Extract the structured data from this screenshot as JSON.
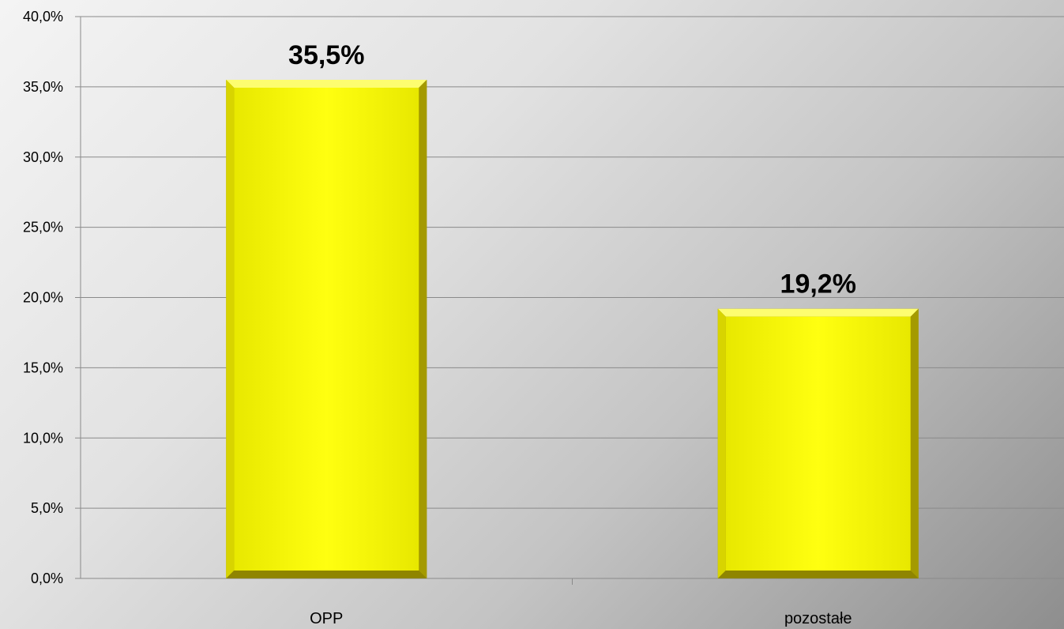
{
  "chart_data": {
    "type": "bar",
    "categories": [
      "OPP",
      "pozostałe"
    ],
    "values": [
      35.5,
      19.2
    ],
    "data_labels": [
      "35,5%",
      "19,2%"
    ],
    "ylim": [
      0,
      40
    ],
    "yticks": [
      0,
      5,
      10,
      15,
      20,
      25,
      30,
      35,
      40
    ],
    "ytick_labels": [
      "0,0%",
      "5,0%",
      "10,0%",
      "15,0%",
      "20,0%",
      "25,0%",
      "30,0%",
      "35,0%",
      "40,0%"
    ],
    "grid": true,
    "legend": "none",
    "colors": {
      "bar": "#ffff00",
      "bar_edge": "#9a8f00",
      "grid": "#8a8a8a",
      "axis": "#8a8a8a"
    }
  }
}
